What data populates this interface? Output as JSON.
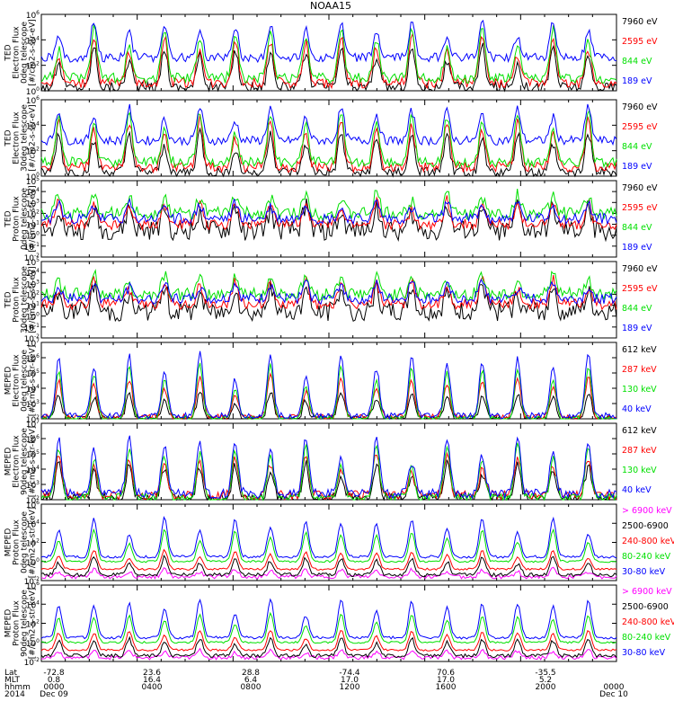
{
  "figure": {
    "title": "NOAA15",
    "time_axis": {
      "row_labels": [
        "Lat",
        "MLT",
        "hhmm",
        "2014"
      ],
      "ticks": [
        {
          "lat": "-72.8",
          "mlt": "0.8",
          "hhmm": "0000",
          "date": "Dec 09"
        },
        {
          "lat": "23.6",
          "mlt": "16.4",
          "hhmm": "0400",
          "date": ""
        },
        {
          "lat": "28.8",
          "mlt": "6.4",
          "hhmm": "0800",
          "date": ""
        },
        {
          "lat": "-74.4",
          "mlt": "17.0",
          "hhmm": "1200",
          "date": ""
        },
        {
          "lat": "70.6",
          "mlt": "17.0",
          "hhmm": "1600",
          "date": ""
        },
        {
          "lat": "-35.5",
          "mlt": "5.2",
          "hhmm": "2000",
          "date": ""
        },
        {
          "lat": "",
          "mlt": "",
          "hhmm": "0000",
          "date": "Dec 10"
        }
      ]
    }
  },
  "colors": {
    "black": "#000000",
    "red": "#ff0000",
    "green": "#00e000",
    "blue": "#0000ff",
    "magenta": "#ff00ff"
  },
  "chart_data": [
    {
      "type": "line",
      "ylabel_lines": [
        "TED",
        "Electron Flux",
        "0deg telescope",
        "[#/cm2-s-str-eV]"
      ],
      "yscale": "log",
      "ylim": [
        1,
        1000000
      ],
      "ytick_labels": [
        "10^0",
        "10^2",
        "10^4",
        "10^6"
      ],
      "legend_placement": "right",
      "series": [
        {
          "name": "7960 eV",
          "color": "black",
          "baseline": 0.3,
          "peak": 3.5,
          "noise": 0.4
        },
        {
          "name": "2595 eV",
          "color": "red",
          "baseline": 0.6,
          "peak": 4.4,
          "noise": 0.4
        },
        {
          "name": "844 eV",
          "color": "green",
          "baseline": 1.0,
          "peak": 5.0,
          "noise": 0.4
        },
        {
          "name": "189 eV",
          "color": "blue",
          "baseline": 2.6,
          "peak": 5.4,
          "noise": 0.35
        }
      ]
    },
    {
      "type": "line",
      "ylabel_lines": [
        "TED",
        "Electron Flux",
        "30deg telescope",
        "[#/cm2-s-str-eV]"
      ],
      "yscale": "log",
      "ylim": [
        1,
        1000000
      ],
      "ytick_labels": [
        "10^0",
        "10^2",
        "10^4",
        "10^6"
      ],
      "legend_placement": "right",
      "series": [
        {
          "name": "7960 eV",
          "color": "black",
          "baseline": 0.3,
          "peak": 3.5,
          "noise": 0.4
        },
        {
          "name": "2595 eV",
          "color": "red",
          "baseline": 0.7,
          "peak": 4.5,
          "noise": 0.4
        },
        {
          "name": "844 eV",
          "color": "green",
          "baseline": 1.1,
          "peak": 5.1,
          "noise": 0.4
        },
        {
          "name": "189 eV",
          "color": "blue",
          "baseline": 2.8,
          "peak": 5.4,
          "noise": 0.35
        }
      ]
    },
    {
      "type": "line",
      "ylabel_lines": [
        "TED",
        "Proton Flux",
        "0deg telescope",
        "[#/cm2-s-str-eV]"
      ],
      "yscale": "log",
      "ylim": [
        0.01,
        100000
      ],
      "ytick_labels": [
        "10^-2",
        "10^-1",
        "10^0",
        "10^1",
        "10^2",
        "10^3",
        "10^4",
        "10^5"
      ],
      "legend_placement": "right",
      "series": [
        {
          "name": "7960 eV",
          "color": "black",
          "baseline": 0.4,
          "peak": 2.8,
          "noise": 0.9
        },
        {
          "name": "2595 eV",
          "color": "red",
          "baseline": 1.0,
          "peak": 3.2,
          "noise": 0.5
        },
        {
          "name": "844 eV",
          "color": "green",
          "baseline": 2.0,
          "peak": 3.8,
          "noise": 0.6
        },
        {
          "name": "189 eV",
          "color": "blue",
          "baseline": 1.5,
          "peak": 3.0,
          "noise": 0.5
        }
      ]
    },
    {
      "type": "line",
      "ylabel_lines": [
        "TED",
        "Proton Flux",
        "30deg telescope",
        "[#/cm2-s-str-eV]"
      ],
      "yscale": "log",
      "ylim": [
        0.01,
        100000
      ],
      "ytick_labels": [
        "10^-2",
        "10^-1",
        "10^0",
        "10^1",
        "10^2",
        "10^3",
        "10^4",
        "10^5"
      ],
      "legend_placement": "right",
      "series": [
        {
          "name": "7960 eV",
          "color": "black",
          "baseline": 0.4,
          "peak": 2.9,
          "noise": 0.9
        },
        {
          "name": "2595 eV",
          "color": "red",
          "baseline": 1.1,
          "peak": 3.4,
          "noise": 0.5
        },
        {
          "name": "844 eV",
          "color": "green",
          "baseline": 2.0,
          "peak": 3.9,
          "noise": 0.6
        },
        {
          "name": "189 eV",
          "color": "blue",
          "baseline": 1.6,
          "peak": 3.2,
          "noise": 0.5
        }
      ]
    },
    {
      "type": "line",
      "ylabel_lines": [
        "MEPED",
        "Electron Flux",
        "0deg telescope",
        "[#/cm2-s-str-keV]"
      ],
      "yscale": "log",
      "ylim": [
        100,
        10000000
      ],
      "ytick_labels": [
        "10^2",
        "10^3",
        "10^4",
        "10^5",
        "10^6",
        "10^7"
      ],
      "legend_placement": "right",
      "series": [
        {
          "name": "612 keV",
          "color": "black",
          "baseline": 2.0,
          "peak": 3.8,
          "noise": 0.2
        },
        {
          "name": "287 keV",
          "color": "red",
          "baseline": 2.1,
          "peak": 4.8,
          "noise": 0.2
        },
        {
          "name": "130 keV",
          "color": "green",
          "baseline": 2.0,
          "peak": 5.6,
          "noise": 0.2
        },
        {
          "name": "40 keV",
          "color": "blue",
          "baseline": 2.2,
          "peak": 6.3,
          "noise": 0.2
        }
      ]
    },
    {
      "type": "line",
      "ylabel_lines": [
        "MEPED",
        "Electron Flux",
        "90deg telescope",
        "[#/cm2-s-str-keV]"
      ],
      "yscale": "log",
      "ylim": [
        100,
        10000000
      ],
      "ytick_labels": [
        "10^2",
        "10^3",
        "10^4",
        "10^5",
        "10^6",
        "10^7"
      ],
      "legend_placement": "right",
      "series": [
        {
          "name": "612 keV",
          "color": "black",
          "baseline": 2.1,
          "peak": 4.4,
          "noise": 0.3
        },
        {
          "name": "287 keV",
          "color": "red",
          "baseline": 2.3,
          "peak": 5.0,
          "noise": 0.3
        },
        {
          "name": "130 keV",
          "color": "green",
          "baseline": 2.1,
          "peak": 5.6,
          "noise": 0.3
        },
        {
          "name": "40 keV",
          "color": "blue",
          "baseline": 2.4,
          "peak": 6.2,
          "noise": 0.3
        }
      ]
    },
    {
      "type": "line",
      "ylabel_lines": [
        "MEPED",
        "Proton Flux",
        "0deg telescope",
        "[#/cm2-s-str-keV]"
      ],
      "yscale": "log",
      "ylim": [
        0.01,
        1000000
      ],
      "ytick_labels": [
        "10^-2",
        "10^0",
        "10^2",
        "10^4",
        "10^6"
      ],
      "legend_placement": "right",
      "series": [
        {
          "name": "> 6900 keV",
          "color": "magenta",
          "baseline": -1.6,
          "peak": -0.8,
          "noise": 0.2
        },
        {
          "name": "2500-6900",
          "color": "black",
          "baseline": -1.4,
          "peak": 0.5,
          "noise": 0.2
        },
        {
          "name": "240-800 keV",
          "color": "red",
          "baseline": -0.8,
          "peak": 1.2,
          "noise": 0.1
        },
        {
          "name": "80-240 keV",
          "color": "green",
          "baseline": 0.0,
          "peak": 3.3,
          "noise": 0.1
        },
        {
          "name": "30-80 keV",
          "color": "blue",
          "baseline": 0.5,
          "peak": 4.6,
          "noise": 0.15
        }
      ]
    },
    {
      "type": "line",
      "ylabel_lines": [
        "MEPED",
        "Proton Flux",
        "90deg telescope",
        "[#/cm2-s-str-keV]"
      ],
      "yscale": "log",
      "ylim": [
        0.01,
        1000000
      ],
      "ytick_labels": [
        "10^-2",
        "10^0",
        "10^2",
        "10^4",
        "10^6"
      ],
      "legend_placement": "right",
      "series": [
        {
          "name": "> 6900 keV",
          "color": "magenta",
          "baseline": -1.6,
          "peak": -0.8,
          "noise": 0.2
        },
        {
          "name": "2500-6900",
          "color": "black",
          "baseline": -1.4,
          "peak": 0.5,
          "noise": 0.2
        },
        {
          "name": "240-800 keV",
          "color": "red",
          "baseline": -0.8,
          "peak": 1.3,
          "noise": 0.1
        },
        {
          "name": "80-240 keV",
          "color": "green",
          "baseline": 0.0,
          "peak": 3.0,
          "noise": 0.1
        },
        {
          "name": "30-80 keV",
          "color": "blue",
          "baseline": 0.5,
          "peak": 4.5,
          "noise": 0.15
        }
      ]
    }
  ]
}
